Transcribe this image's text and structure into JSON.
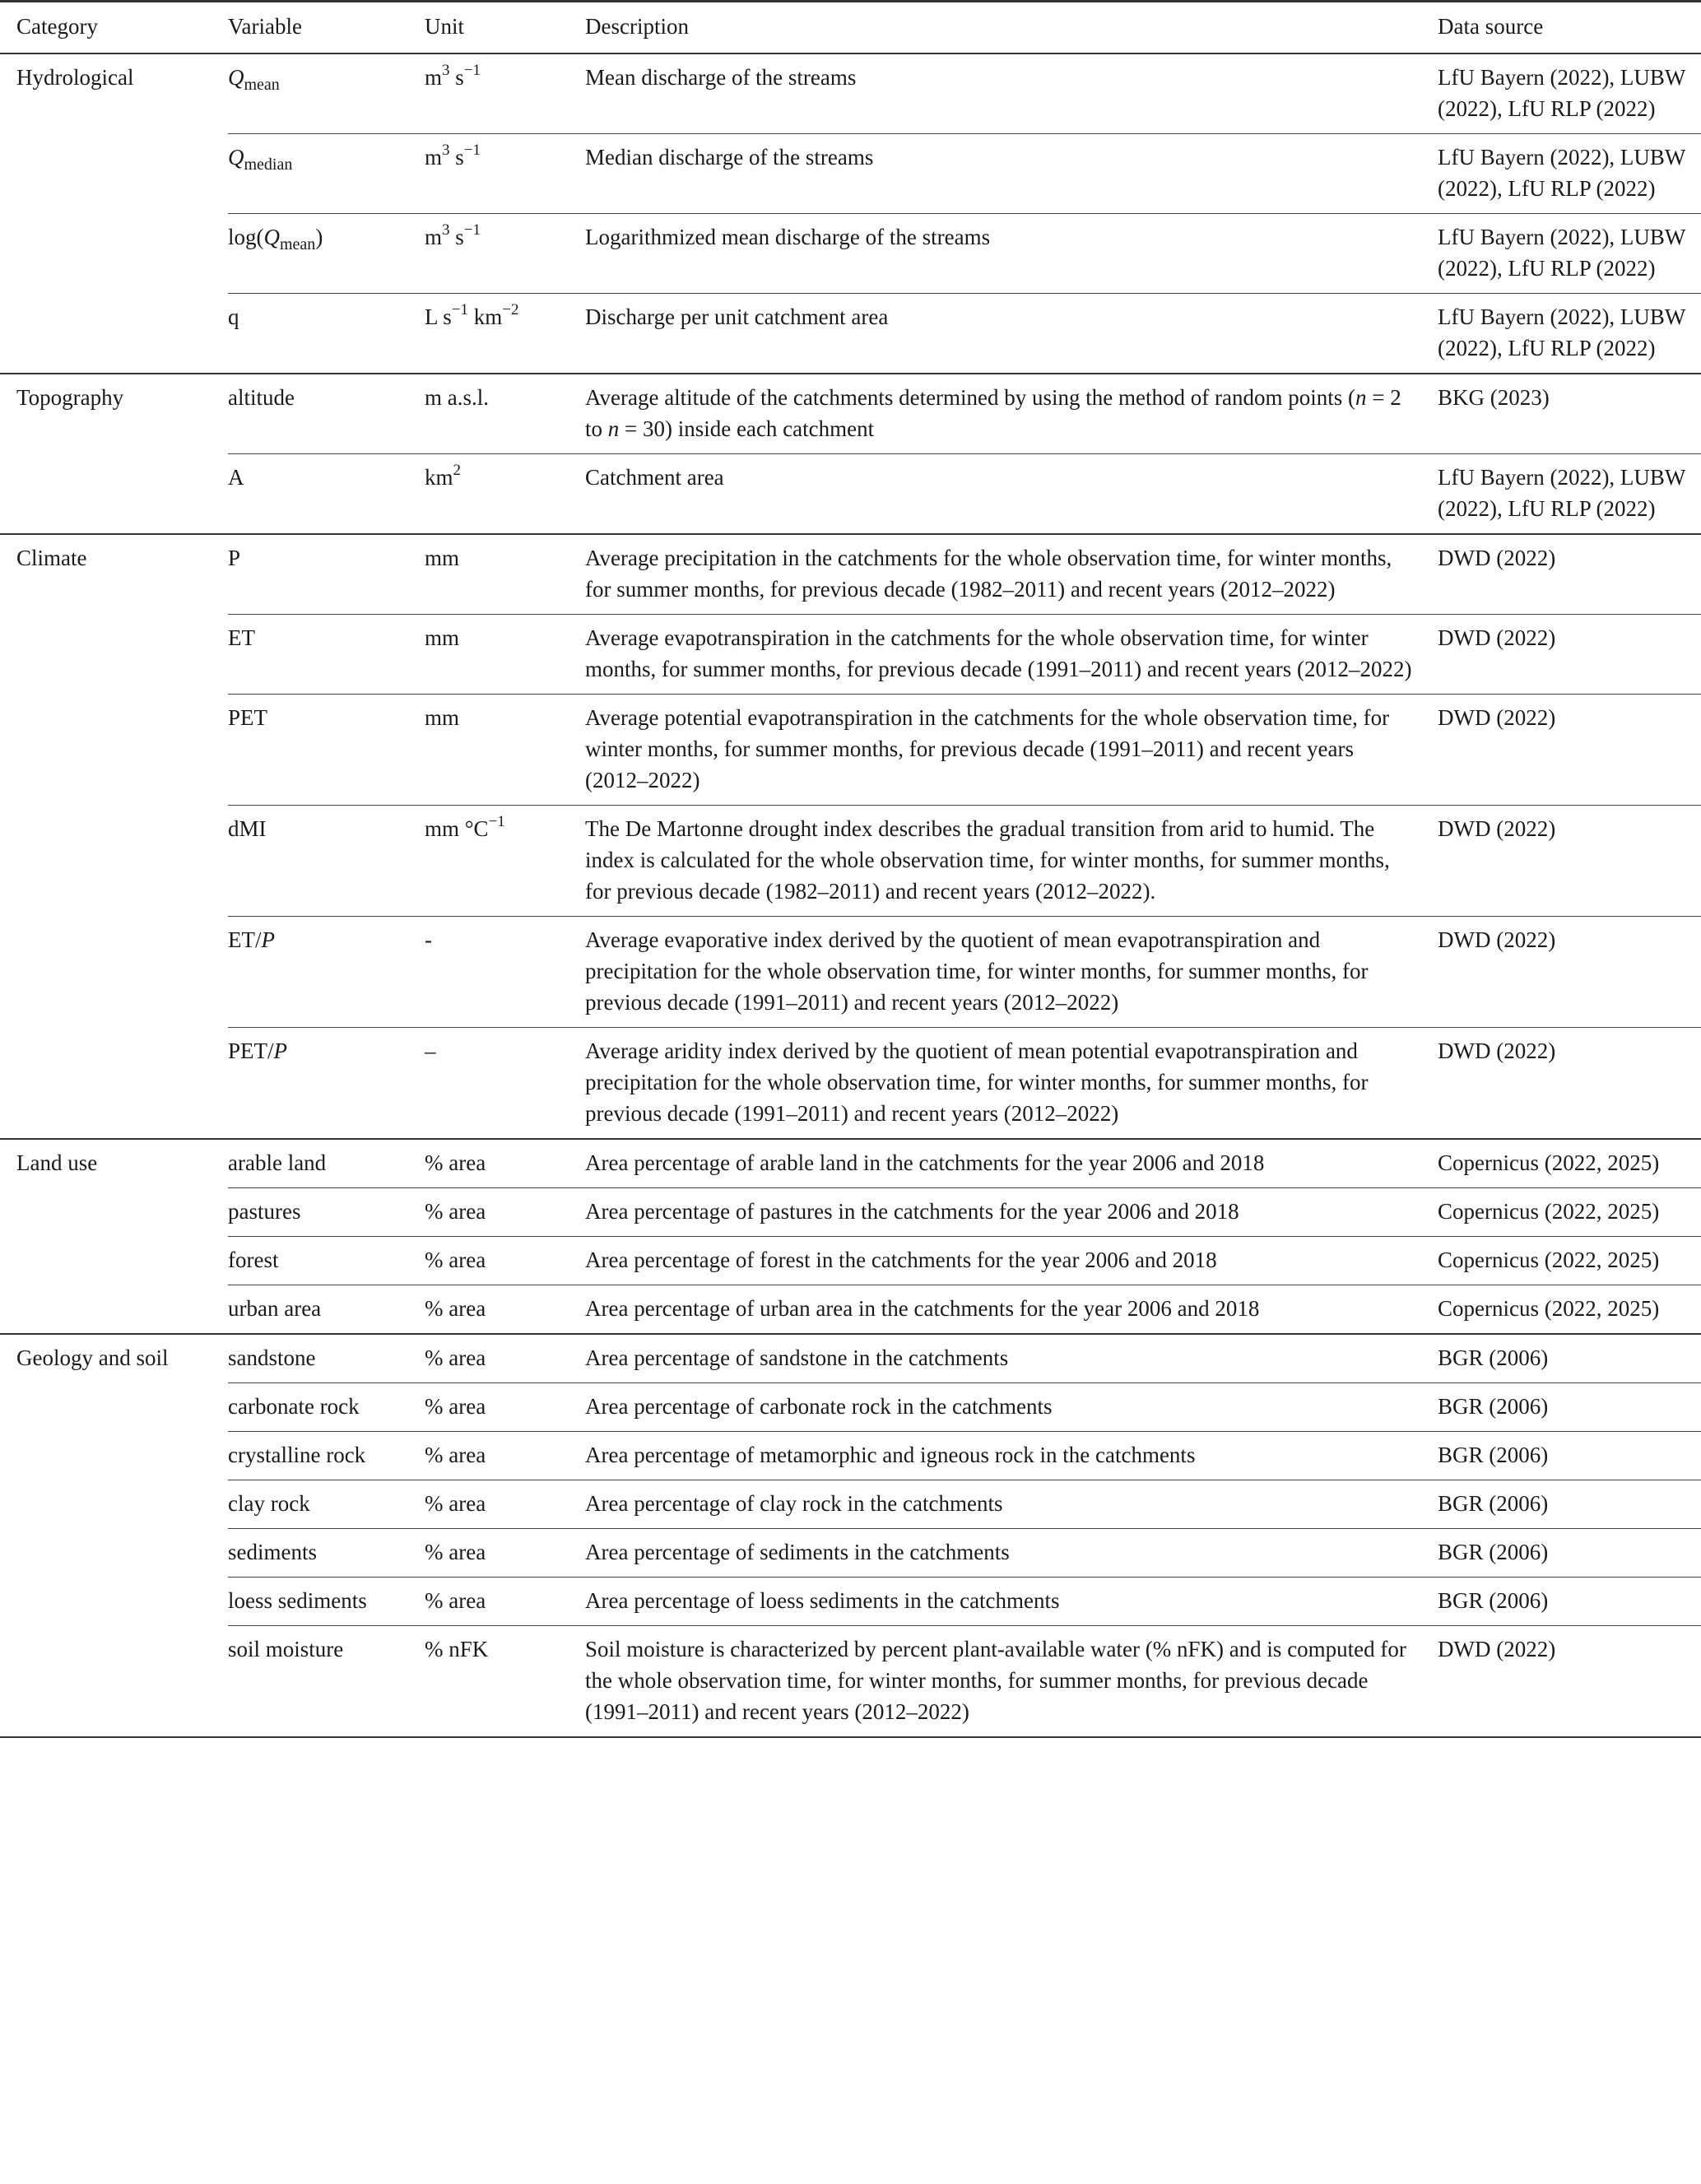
{
  "headers": [
    "Category",
    "Variable",
    "Unit",
    "Description",
    "Data source"
  ],
  "groups": [
    {
      "category": "Hydrological",
      "rows": [
        {
          "variable": [
            {
              "t": "Q",
              "i": true
            },
            {
              "t": "mean",
              "sub": true
            }
          ],
          "unit": [
            {
              "t": "m"
            },
            {
              "t": "3",
              "sup": true
            },
            {
              "t": " s"
            },
            {
              "t": "−1",
              "sup": true
            }
          ],
          "description": "Mean discharge of the streams",
          "source": "LfU Bayern (2022), LUBW (2022), LfU RLP (2022)"
        },
        {
          "variable": [
            {
              "t": "Q",
              "i": true
            },
            {
              "t": "median",
              "sub": true
            }
          ],
          "unit": [
            {
              "t": "m"
            },
            {
              "t": "3",
              "sup": true
            },
            {
              "t": " s"
            },
            {
              "t": "−1",
              "sup": true
            }
          ],
          "description": "Median discharge of the streams",
          "source": "LfU Bayern (2022), LUBW (2022), LfU RLP (2022)"
        },
        {
          "variable": [
            {
              "t": "log("
            },
            {
              "t": "Q",
              "i": true
            },
            {
              "t": "mean",
              "sub": true
            },
            {
              "t": ")"
            }
          ],
          "unit": [
            {
              "t": "m"
            },
            {
              "t": "3",
              "sup": true
            },
            {
              "t": " s"
            },
            {
              "t": "−1",
              "sup": true
            }
          ],
          "description": "Logarithmized mean discharge of the streams",
          "source": "LfU Bayern (2022), LUBW (2022), LfU RLP (2022)"
        },
        {
          "variable": "q",
          "unit": [
            {
              "t": "L s"
            },
            {
              "t": "−1",
              "sup": true
            },
            {
              "t": " km"
            },
            {
              "t": "−2",
              "sup": true
            }
          ],
          "description": "Discharge per unit catchment area",
          "source": "LfU Bayern (2022), LUBW (2022), LfU RLP (2022)"
        }
      ]
    },
    {
      "category": "Topography",
      "rows": [
        {
          "variable": "altitude",
          "unit": "m a.s.l.",
          "description": [
            {
              "t": "Average altitude of the catchments determined by using the method of random points ("
            },
            {
              "t": "n",
              "i": true
            },
            {
              "t": " = 2 to "
            },
            {
              "t": "n",
              "i": true
            },
            {
              "t": " = 30) inside each catchment"
            }
          ],
          "source": "BKG (2023)"
        },
        {
          "variable": "A",
          "unit": [
            {
              "t": "km"
            },
            {
              "t": "2",
              "sup": true
            }
          ],
          "description": "Catchment area",
          "source": "LfU Bayern (2022), LUBW (2022), LfU RLP (2022)"
        }
      ]
    },
    {
      "category": "Climate",
      "rows": [
        {
          "variable": "P",
          "unit": "mm",
          "description": "Average precipitation in the catchments for the whole observation time, for winter months, for summer months, for previous decade (1982–2011) and recent years (2012–2022)",
          "source": "DWD (2022)"
        },
        {
          "variable": "ET",
          "unit": "mm",
          "description": "Average evapotranspiration in the catchments for the whole observation time, for winter months, for summer months, for previous decade (1991–2011) and recent years (2012–2022)",
          "source": "DWD (2022)"
        },
        {
          "variable": "PET",
          "unit": "mm",
          "description": "Average potential evapotranspiration in the catchments for the whole observation time, for winter months, for summer months, for previous decade (1991–2011) and recent years (2012–2022)",
          "source": "DWD (2022)"
        },
        {
          "variable": "dMI",
          "unit": [
            {
              "t": "mm °C"
            },
            {
              "t": "−1",
              "sup": true
            }
          ],
          "description": "The De Martonne drought index describes the gradual transition from arid to humid. The index is calculated for the whole observation time, for winter months, for summer months, for previous decade (1982–2011) and recent years (2012–2022).",
          "source": "DWD (2022)"
        },
        {
          "variable": [
            {
              "t": "ET/"
            },
            {
              "t": "P",
              "i": true
            }
          ],
          "unit": "-",
          "description": "Average evaporative index derived by the quotient of mean evapotranspiration and precipitation for the whole observation time, for winter months, for summer months, for previous decade (1991–2011) and recent years (2012–2022)",
          "source": "DWD (2022)"
        },
        {
          "variable": [
            {
              "t": "PET/"
            },
            {
              "t": "P",
              "i": true
            }
          ],
          "unit": "–",
          "description": "Average aridity index derived by the quotient of mean potential evapotranspiration and precipitation for the whole observation time, for winter months, for summer months, for previous decade (1991–2011) and recent years (2012–2022)",
          "source": "DWD (2022)"
        }
      ]
    },
    {
      "category": "Land use",
      "rows": [
        {
          "variable": "arable land",
          "unit": "% area",
          "description": "Area percentage of arable land in the catchments for the year 2006 and 2018",
          "source": "Copernicus (2022, 2025)"
        },
        {
          "variable": "pastures",
          "unit": "% area",
          "description": "Area percentage of pastures in the catchments for the year 2006 and 2018",
          "source": "Copernicus (2022, 2025)"
        },
        {
          "variable": "forest",
          "unit": "% area",
          "description": "Area percentage of forest in the catchments for the year 2006 and 2018",
          "source": "Copernicus (2022, 2025)"
        },
        {
          "variable": "urban area",
          "unit": "% area",
          "description": "Area percentage of urban area in the catchments for the year 2006 and 2018",
          "source": "Copernicus (2022, 2025)"
        }
      ]
    },
    {
      "category": "Geology and soil",
      "rows": [
        {
          "variable": "sandstone",
          "unit": "% area",
          "description": "Area percentage of sandstone in the catchments",
          "source": "BGR (2006)"
        },
        {
          "variable": "carbonate rock",
          "unit": "% area",
          "description": "Area percentage of carbonate rock in the catchments",
          "source": "BGR (2006)"
        },
        {
          "variable": "crystalline rock",
          "unit": "% area",
          "description": "Area percentage of metamorphic and igneous rock in the catchments",
          "source": "BGR (2006)"
        },
        {
          "variable": "clay rock",
          "unit": "% area",
          "description": "Area percentage of clay rock in the catchments",
          "source": "BGR (2006)"
        },
        {
          "variable": "sediments",
          "unit": "% area",
          "description": "Area percentage of sediments in the catchments",
          "source": "BGR (2006)"
        },
        {
          "variable": "loess sediments",
          "unit": "% area",
          "description": "Area percentage of loess sediments in the catchments",
          "source": "BGR (2006)"
        },
        {
          "variable": "soil moisture",
          "unit": "% nFK",
          "description": "Soil moisture is characterized by percent plant-available water (% nFK) and is computed for the whole observation time, for winter months, for summer months, for previous decade (1991–2011) and recent years (2012–2022)",
          "source": "DWD (2022)"
        }
      ]
    }
  ]
}
